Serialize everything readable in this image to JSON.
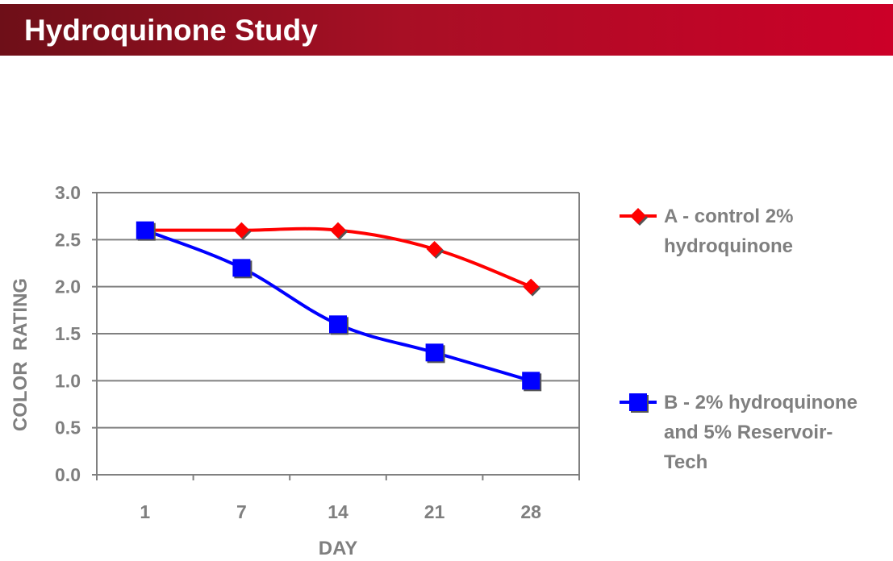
{
  "header": {
    "title": "Hydroquinone Study"
  },
  "colors": {
    "banner_start": "#6e0f18",
    "banner_end": "#cc0028",
    "series_a": "#ff0000",
    "series_b": "#0000ff",
    "grid": "#808080",
    "text": "#7f7f7f"
  },
  "chart_data": {
    "type": "line",
    "xlabel": "DAY",
    "ylabel": "COLOR  RATING",
    "categories": [
      "1",
      "7",
      "14",
      "21",
      "28"
    ],
    "ylim": [
      0,
      3
    ],
    "yticks": [
      "0.0",
      "0.5",
      "1.0",
      "1.5",
      "2.0",
      "2.5",
      "3.0"
    ],
    "grid": true,
    "legend_position": "right",
    "series": [
      {
        "name": "A - control 2% hydroquinone",
        "legend_lines": [
          "A - control 2%",
          "hydroquinone"
        ],
        "marker": "diamond",
        "color": "#ff0000",
        "values": [
          2.6,
          2.6,
          2.6,
          2.4,
          2.0
        ]
      },
      {
        "name": "B - 2% hydroquinone and 5% Reservoir-Tech",
        "legend_lines": [
          "B - 2% hydroquinone",
          "and 5% Reservoir-",
          "Tech"
        ],
        "marker": "square",
        "color": "#0000ff",
        "values": [
          2.6,
          2.2,
          1.6,
          1.3,
          1.0
        ]
      }
    ]
  }
}
